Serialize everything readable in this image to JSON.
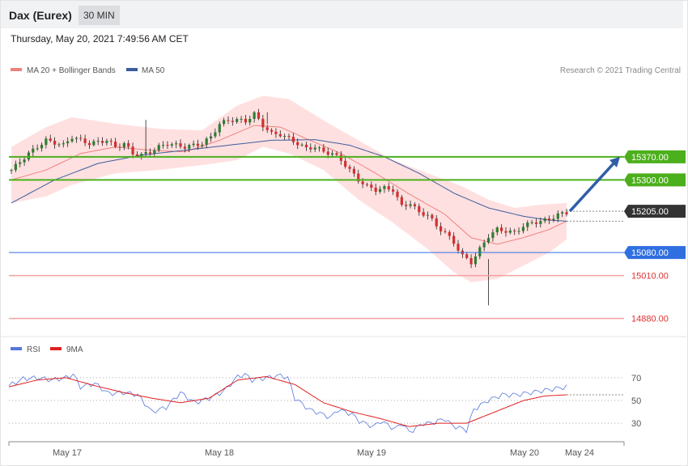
{
  "header": {
    "title": "Dax (Eurex)",
    "timeframe": "30 MIN"
  },
  "datetime": "Thursday, May 20, 2021 7:49:56 AM CET",
  "legend": {
    "ma20_label": "MA 20 + Bollinger Bands",
    "ma50_label": "MA 50",
    "copyright": "Research © 2021 Trading Central",
    "rsi_label": "RSI",
    "ma9_label": "9MA"
  },
  "colors": {
    "ma20": "#f08080",
    "bands": "#ffdada",
    "ma50": "#3b5e9c",
    "resistance": "#4caf1c",
    "support_blue": "#2f6fe0",
    "support_red": "#f4a0a0",
    "current": "#333333",
    "up_candle": "#2e7d32",
    "down_candle": "#d32f2f",
    "rsi": "#5577dd",
    "rsi_ma": "#e02020",
    "arrow": "#2f5ea8"
  },
  "chart_data": {
    "type": "candlestick",
    "instrument": "Dax (Eurex)",
    "timeframe": "30 MIN",
    "ylim": [
      14840,
      15600
    ],
    "x_tick_labels": [
      "May 17",
      "May 18",
      "May 19",
      "May 20",
      "May 24"
    ],
    "levels": [
      {
        "value": 15370.0,
        "label": "15370.00",
        "kind": "resistance"
      },
      {
        "value": 15300.0,
        "label": "15300.00",
        "kind": "resistance"
      },
      {
        "value": 15205.0,
        "label": "15205.00",
        "kind": "current"
      },
      {
        "value": 15080.0,
        "label": "15080.00",
        "kind": "support"
      },
      {
        "value": 15010.0,
        "label": "15010.00",
        "kind": "support"
      },
      {
        "value": 14880.0,
        "label": "14880.00",
        "kind": "support"
      }
    ],
    "close_path": [
      [
        0,
        15330
      ],
      [
        4,
        15380
      ],
      [
        8,
        15420
      ],
      [
        12,
        15405
      ],
      [
        14,
        15430
      ],
      [
        16,
        15420
      ],
      [
        18,
        15410
      ],
      [
        20,
        15415
      ],
      [
        22,
        15420
      ],
      [
        24,
        15400
      ],
      [
        26,
        15410
      ],
      [
        28,
        15380
      ],
      [
        30,
        15375
      ],
      [
        32,
        15385
      ],
      [
        34,
        15400
      ],
      [
        36,
        15410
      ],
      [
        38,
        15405
      ],
      [
        40,
        15400
      ],
      [
        42,
        15405
      ],
      [
        44,
        15410
      ],
      [
        46,
        15430
      ],
      [
        48,
        15470
      ],
      [
        50,
        15480
      ],
      [
        52,
        15482
      ],
      [
        54,
        15478
      ],
      [
        56,
        15500
      ],
      [
        58,
        15465
      ],
      [
        60,
        15440
      ],
      [
        62,
        15438
      ],
      [
        64,
        15425
      ],
      [
        66,
        15410
      ],
      [
        68,
        15395
      ],
      [
        70,
        15400
      ],
      [
        72,
        15385
      ],
      [
        74,
        15380
      ],
      [
        76,
        15360
      ],
      [
        78,
        15330
      ],
      [
        80,
        15300
      ],
      [
        82,
        15280
      ],
      [
        84,
        15270
      ],
      [
        86,
        15275
      ],
      [
        88,
        15270
      ],
      [
        90,
        15220
      ],
      [
        92,
        15230
      ],
      [
        94,
        15200
      ],
      [
        96,
        15195
      ],
      [
        98,
        15160
      ],
      [
        100,
        15140
      ],
      [
        102,
        15110
      ],
      [
        104,
        15070
      ],
      [
        106,
        15050
      ],
      [
        108,
        15090
      ],
      [
        110,
        15130
      ],
      [
        112,
        15150
      ],
      [
        114,
        15145
      ],
      [
        116,
        15140
      ],
      [
        118,
        15160
      ],
      [
        120,
        15170
      ],
      [
        122,
        15175
      ],
      [
        124,
        15180
      ],
      [
        126,
        15195
      ],
      [
        128,
        15200
      ]
    ],
    "candles_count": 129,
    "ma20": [
      [
        0,
        15300
      ],
      [
        8,
        15330
      ],
      [
        16,
        15380
      ],
      [
        24,
        15400
      ],
      [
        32,
        15390
      ],
      [
        40,
        15385
      ],
      [
        48,
        15420
      ],
      [
        56,
        15465
      ],
      [
        62,
        15460
      ],
      [
        68,
        15425
      ],
      [
        76,
        15380
      ],
      [
        84,
        15320
      ],
      [
        92,
        15255
      ],
      [
        100,
        15195
      ],
      [
        106,
        15125
      ],
      [
        112,
        15105
      ],
      [
        118,
        15125
      ],
      [
        124,
        15150
      ],
      [
        128,
        15175
      ]
    ],
    "ma50": [
      [
        0,
        15230
      ],
      [
        10,
        15300
      ],
      [
        20,
        15350
      ],
      [
        30,
        15375
      ],
      [
        40,
        15390
      ],
      [
        50,
        15405
      ],
      [
        60,
        15420
      ],
      [
        70,
        15422
      ],
      [
        78,
        15405
      ],
      [
        86,
        15370
      ],
      [
        94,
        15320
      ],
      [
        102,
        15260
      ],
      [
        110,
        15215
      ],
      [
        118,
        15190
      ],
      [
        124,
        15178
      ],
      [
        128,
        15175
      ]
    ],
    "bollinger_upper": [
      [
        0,
        15400
      ],
      [
        8,
        15460
      ],
      [
        14,
        15490
      ],
      [
        24,
        15470
      ],
      [
        34,
        15455
      ],
      [
        44,
        15450
      ],
      [
        52,
        15525
      ],
      [
        58,
        15555
      ],
      [
        64,
        15545
      ],
      [
        72,
        15480
      ],
      [
        80,
        15420
      ],
      [
        88,
        15360
      ],
      [
        96,
        15320
      ],
      [
        104,
        15280
      ],
      [
        110,
        15240
      ],
      [
        116,
        15215
      ],
      [
        122,
        15225
      ],
      [
        128,
        15230
      ]
    ],
    "bollinger_lower": [
      [
        0,
        15230
      ],
      [
        8,
        15250
      ],
      [
        14,
        15285
      ],
      [
        24,
        15320
      ],
      [
        34,
        15330
      ],
      [
        44,
        15345
      ],
      [
        52,
        15360
      ],
      [
        58,
        15400
      ],
      [
        64,
        15380
      ],
      [
        72,
        15330
      ],
      [
        80,
        15240
      ],
      [
        88,
        15170
      ],
      [
        96,
        15090
      ],
      [
        102,
        15020
      ],
      [
        106,
        14990
      ],
      [
        112,
        15000
      ],
      [
        118,
        15040
      ],
      [
        124,
        15080
      ],
      [
        128,
        15120
      ]
    ],
    "projection": {
      "from": 15205,
      "to": 15370
    },
    "rsi": {
      "levels": [
        70,
        50,
        30
      ],
      "ylim": [
        18,
        82
      ],
      "rsi_path": [
        [
          0,
          63
        ],
        [
          4,
          69
        ],
        [
          8,
          70
        ],
        [
          12,
          68
        ],
        [
          16,
          70
        ],
        [
          18,
          73
        ],
        [
          20,
          62
        ],
        [
          24,
          65
        ],
        [
          28,
          56
        ],
        [
          32,
          57
        ],
        [
          36,
          55
        ],
        [
          40,
          40
        ],
        [
          44,
          44
        ],
        [
          48,
          57
        ],
        [
          52,
          48
        ],
        [
          56,
          52
        ],
        [
          60,
          58
        ],
        [
          64,
          71
        ],
        [
          66,
          73
        ],
        [
          68,
          68
        ],
        [
          72,
          70
        ],
        [
          76,
          72
        ],
        [
          78,
          70
        ],
        [
          80,
          52
        ],
        [
          84,
          42
        ],
        [
          86,
          40
        ],
        [
          90,
          35
        ],
        [
          92,
          42
        ],
        [
          96,
          38
        ],
        [
          98,
          32
        ],
        [
          102,
          27
        ],
        [
          104,
          32
        ],
        [
          108,
          25
        ],
        [
          110,
          30
        ],
        [
          112,
          22
        ],
        [
          116,
          30
        ],
        [
          118,
          30
        ],
        [
          122,
          34
        ],
        [
          124,
          28
        ],
        [
          128,
          24
        ],
        [
          130,
          42
        ],
        [
          134,
          50
        ],
        [
          138,
          55
        ],
        [
          142,
          55
        ],
        [
          146,
          57
        ],
        [
          148,
          58
        ],
        [
          152,
          60
        ],
        [
          156,
          62
        ]
      ],
      "ma_path": [
        [
          0,
          62
        ],
        [
          8,
          68
        ],
        [
          16,
          70
        ],
        [
          24,
          63
        ],
        [
          32,
          57
        ],
        [
          40,
          52
        ],
        [
          48,
          48
        ],
        [
          56,
          52
        ],
        [
          64,
          68
        ],
        [
          72,
          71
        ],
        [
          80,
          64
        ],
        [
          88,
          48
        ],
        [
          96,
          40
        ],
        [
          104,
          34
        ],
        [
          112,
          27
        ],
        [
          120,
          30
        ],
        [
          128,
          30
        ],
        [
          136,
          40
        ],
        [
          144,
          50
        ],
        [
          150,
          54
        ],
        [
          156,
          55
        ]
      ]
    }
  }
}
